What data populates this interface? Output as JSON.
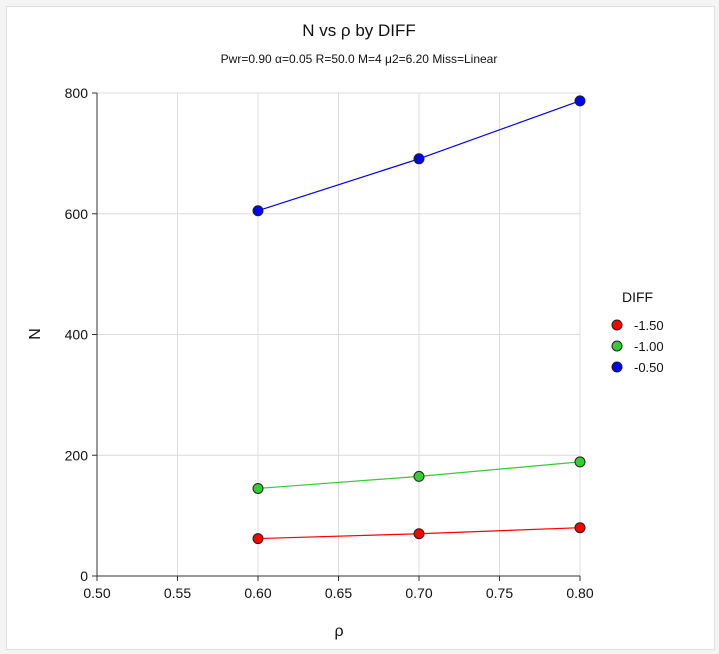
{
  "chart_data": {
    "type": "line",
    "title": "N vs ρ by DIFF",
    "subtitle": "Pwr=0.90 α=0.05 R=50.0 M=4 μ2=6.20 Miss=Linear",
    "xlabel": "ρ",
    "ylabel": "N",
    "xlim": [
      0.5,
      0.8
    ],
    "ylim": [
      0,
      800
    ],
    "x_ticks": [
      "0.50",
      "0.55",
      "0.60",
      "0.65",
      "0.70",
      "0.75",
      "0.80"
    ],
    "y_ticks": [
      "0",
      "200",
      "400",
      "600",
      "800"
    ],
    "grid": true,
    "legend": {
      "title": "DIFF",
      "position": "right"
    },
    "x": [
      0.6,
      0.7,
      0.8
    ],
    "series": [
      {
        "name": "-1.50",
        "color": "#ff0000",
        "values": [
          62,
          70,
          80
        ]
      },
      {
        "name": "-1.00",
        "color": "#33cc33",
        "values": [
          145,
          165,
          189
        ]
      },
      {
        "name": "-0.50",
        "color": "#0000ff",
        "values": [
          605,
          691,
          787
        ]
      }
    ]
  }
}
